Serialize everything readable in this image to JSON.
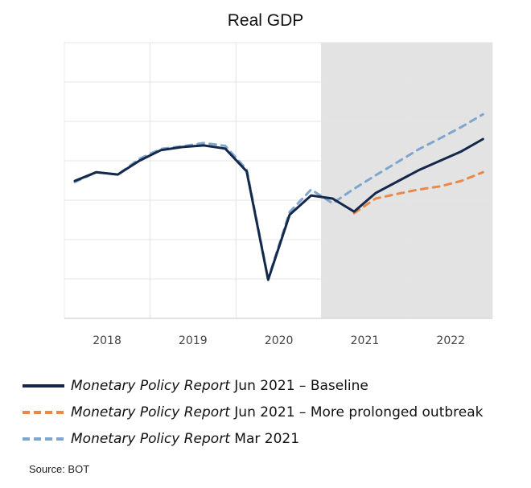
{
  "chart_data": {
    "type": "line",
    "title": "Real GDP",
    "xlabel": "",
    "ylabel": "",
    "x": [
      "2018Q1",
      "2018Q2",
      "2018Q3",
      "2018Q4",
      "2019Q1",
      "2019Q2",
      "2019Q3",
      "2019Q4",
      "2020Q1",
      "2020Q2",
      "2020Q3",
      "2020Q4",
      "2021Q1",
      "2021Q2",
      "2021Q3",
      "2021Q4",
      "2022Q1",
      "2022Q2",
      "2022Q3",
      "2022Q4"
    ],
    "xtick_labels": [
      "2018",
      "2019",
      "2020",
      "2021",
      "2022"
    ],
    "ylim": [
      0,
      7
    ],
    "y_ticks_labeled": false,
    "grid": true,
    "forecast_shaded_from": "2021Q1",
    "forecast_shade_color": "#e3e3e3",
    "series": [
      {
        "name": "Monetary Policy Report Jun 2021 – Baseline",
        "name_italic": "Monetary Policy Report",
        "name_rest": " Jun 2021 – Baseline",
        "color": "#14284b",
        "style": "solid",
        "values": [
          3.49,
          3.71,
          3.65,
          4.0,
          4.27,
          4.35,
          4.39,
          4.31,
          3.73,
          0.98,
          2.63,
          3.12,
          3.04,
          2.71,
          3.18,
          3.47,
          3.76,
          4.0,
          4.24,
          4.55
        ]
      },
      {
        "name": "Monetary Policy Report Jun 2021 – More prolonged outbreak",
        "name_italic": "Monetary Policy Report",
        "name_rest": " Jun 2021 – More prolonged outbreak",
        "color": "#e8894a",
        "style": "dashed",
        "values": [
          null,
          null,
          null,
          null,
          null,
          null,
          null,
          null,
          null,
          null,
          null,
          null,
          null,
          2.67,
          3.04,
          3.16,
          3.27,
          3.35,
          3.49,
          3.71
        ]
      },
      {
        "name": "Monetary Policy Report Mar 2021",
        "name_italic": "Monetary Policy Report",
        "name_rest": " Mar 2021",
        "color": "#7ea6cf",
        "style": "dashed",
        "values": [
          3.46,
          3.71,
          3.65,
          4.05,
          4.3,
          4.37,
          4.45,
          4.38,
          3.78,
          1.0,
          2.7,
          3.27,
          2.92,
          3.29,
          3.63,
          3.96,
          4.29,
          4.57,
          4.86,
          5.18
        ]
      }
    ]
  },
  "source": "Source: BOT"
}
